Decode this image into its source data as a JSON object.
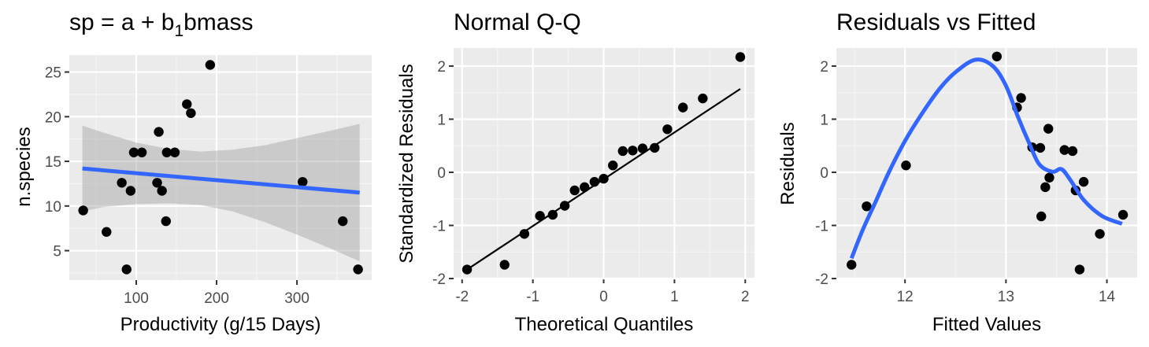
{
  "colors": {
    "panel_bg": "#EBEBEB",
    "grid_major": "#FFFFFF",
    "grid_minor": "#F5F5F5",
    "point": "#000000",
    "smooth_line": "#3366FF",
    "ribbon": "#999999",
    "qq_line": "#000000",
    "tick_text": "#4D4D4D"
  },
  "chart_data": [
    {
      "type": "scatter",
      "title": "sp = a + b1bmass",
      "title_parts": {
        "pre": "sp = a + b",
        "sub": "1",
        "post": "bmass"
      },
      "xlabel": "Productivity (g/15 Days)",
      "ylabel": "n.species",
      "xlim": [
        16.7,
        393
      ],
      "ylim": [
        1.7,
        26.9
      ],
      "xticks": [
        100,
        200,
        300
      ],
      "xtick_labels": [
        "100",
        "200",
        "300"
      ],
      "xminor": [
        50,
        150,
        250,
        350
      ],
      "yticks": [
        5,
        10,
        15,
        20,
        25
      ],
      "ytick_labels": [
        "5",
        "10",
        "15",
        "20",
        "25"
      ],
      "yminor": [
        2.5,
        7.5,
        12.5,
        17.5,
        22.5
      ],
      "grid": true,
      "points": {
        "x": [
          34,
          63,
          88,
          82,
          93,
          97,
          107,
          126,
          128,
          132,
          137,
          138,
          148,
          163,
          168,
          192,
          307,
          357,
          376
        ],
        "y": [
          9.5,
          7.1,
          2.9,
          12.6,
          11.7,
          16,
          16,
          12.6,
          18.3,
          11.7,
          8.3,
          16,
          16,
          21.4,
          20.4,
          25.8,
          12.7,
          8.3,
          2.9
        ]
      },
      "fit_line": {
        "x": [
          33,
          378
        ],
        "y": [
          14.2,
          11.5
        ],
        "label": "linear fit"
      },
      "ribbon": {
        "x": [
          33,
          60,
          100,
          140,
          180,
          220,
          260,
          300,
          340,
          378
        ],
        "upper": [
          19.0,
          18.2,
          17.1,
          16.4,
          16.1,
          16.3,
          16.8,
          17.6,
          18.4,
          19.2
        ],
        "lower": [
          9.4,
          9.9,
          10.2,
          10.3,
          10.1,
          9.4,
          8.2,
          6.8,
          5.3,
          3.8
        ]
      }
    },
    {
      "type": "scatter",
      "title": "Normal Q-Q",
      "xlabel": "Theoretical Quantiles",
      "ylabel": "Standardized Residuals",
      "xlim": [
        -2.12,
        2.13
      ],
      "ylim": [
        -2.0,
        2.34
      ],
      "xticks": [
        -2,
        -1,
        0,
        1,
        2
      ],
      "xtick_labels": [
        "-2",
        "-1",
        "0",
        "1",
        "2"
      ],
      "xminor": [
        -1.5,
        -0.5,
        0.5,
        1.5
      ],
      "yticks": [
        -2,
        -1,
        0,
        1,
        2
      ],
      "ytick_labels": [
        "-2",
        "-1",
        "0",
        "1",
        "2"
      ],
      "yminor": [
        -1.5,
        -0.5,
        0.5,
        1.5
      ],
      "grid": true,
      "points": {
        "x": [
          -1.93,
          -1.4,
          -1.12,
          -0.9,
          -0.72,
          -0.55,
          -0.41,
          -0.27,
          -0.13,
          0.0,
          0.13,
          0.27,
          0.41,
          0.55,
          0.72,
          0.9,
          1.12,
          1.4,
          1.93
        ],
        "y": [
          -1.83,
          -1.74,
          -1.16,
          -0.82,
          -0.8,
          -0.63,
          -0.34,
          -0.28,
          -0.18,
          -0.12,
          0.13,
          0.4,
          0.41,
          0.45,
          0.46,
          0.81,
          1.22,
          1.39,
          2.17
        ]
      },
      "ref_line": {
        "x": [
          -1.93,
          1.93
        ],
        "y": [
          -1.83,
          1.57
        ]
      }
    },
    {
      "type": "scatter",
      "title": "Residuals vs Fitted",
      "xlabel": "Fitted Values",
      "ylabel": "Residuals",
      "xlim": [
        11.32,
        14.3
      ],
      "ylim": [
        -2.0,
        2.34
      ],
      "xticks": [
        12,
        13,
        14
      ],
      "xtick_labels": [
        "12",
        "13",
        "14"
      ],
      "xminor": [
        11.5,
        12.5,
        13.5
      ],
      "yticks": [
        -2,
        -1,
        0,
        1,
        2
      ],
      "ytick_labels": [
        "-2",
        "-1",
        "0",
        "1",
        "2"
      ],
      "yminor": [
        -1.5,
        -0.5,
        0.5,
        1.5
      ],
      "grid": true,
      "points": {
        "x": [
          11.47,
          11.62,
          12.01,
          12.91,
          13.15,
          13.11,
          13.42,
          13.26,
          13.34,
          13.58,
          13.66,
          13.43,
          13.39,
          13.77,
          13.69,
          13.35,
          13.93,
          14.16,
          13.73
        ],
        "y": [
          -1.74,
          -0.64,
          0.13,
          2.18,
          1.4,
          1.22,
          0.82,
          0.47,
          0.46,
          0.42,
          0.4,
          -0.1,
          -0.28,
          -0.18,
          -0.34,
          -0.83,
          -1.16,
          -0.8,
          -1.83
        ]
      },
      "smooth": {
        "x": [
          11.47,
          11.58,
          11.71,
          11.84,
          12.0,
          12.17,
          12.35,
          12.51,
          12.7,
          12.87,
          13.0,
          13.12,
          13.23,
          13.33,
          13.46,
          13.55,
          13.64,
          13.77,
          13.95,
          14.15
        ],
        "y": [
          -1.62,
          -1.09,
          -0.55,
          0.0,
          0.59,
          1.11,
          1.59,
          1.9,
          2.12,
          2.0,
          1.63,
          1.04,
          0.55,
          0.15,
          0.01,
          0.06,
          -0.15,
          -0.52,
          -0.82,
          -0.97
        ]
      }
    }
  ],
  "panels": [
    {
      "title": "sp = a + b1bmass",
      "xlabel": "Productivity (g/15 Days)",
      "ylabel": "n.species"
    },
    {
      "title": "Normal Q-Q",
      "xlabel": "Theoretical Quantiles",
      "ylabel": "Standardized Residuals"
    },
    {
      "title": "Residuals vs Fitted",
      "xlabel": "Fitted Values",
      "ylabel": "Residuals"
    }
  ]
}
